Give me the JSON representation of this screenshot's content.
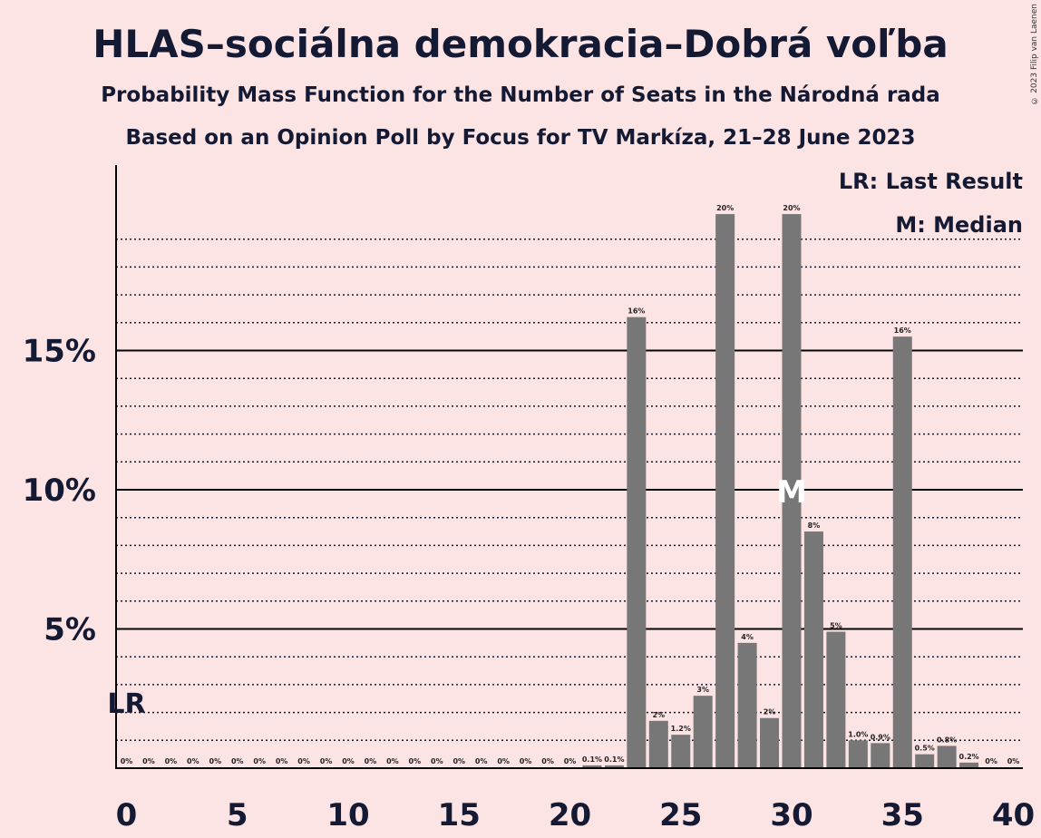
{
  "title": "HLAS–sociálna demokracia–Dobrá voľba",
  "subtitle": "Probability Mass Function for the Number of Seats in the Národná rada",
  "subtitle2": "Based on an Opinion Poll by Focus for TV Markíza, 21–28 June 2023",
  "copyright": "© 2023 Filip van Laenen",
  "legend": {
    "last_result": "LR: Last Result",
    "median": "M: Median"
  },
  "colors": {
    "background": "#fde4e4",
    "bar": "#777777",
    "text": "#141a33"
  },
  "chart_data": {
    "type": "bar",
    "x": [
      0,
      1,
      2,
      3,
      4,
      5,
      6,
      7,
      8,
      9,
      10,
      11,
      12,
      13,
      14,
      15,
      16,
      17,
      18,
      19,
      20,
      21,
      22,
      23,
      24,
      25,
      26,
      27,
      28,
      29,
      30,
      31,
      32,
      33,
      34,
      35,
      36,
      37,
      38,
      39,
      40
    ],
    "values": [
      0,
      0,
      0,
      0,
      0,
      0,
      0,
      0,
      0,
      0,
      0,
      0,
      0,
      0,
      0,
      0,
      0,
      0,
      0,
      0,
      0,
      0.1,
      0.1,
      16.2,
      1.7,
      1.2,
      2.6,
      19.9,
      4.5,
      1.8,
      19.9,
      8.5,
      4.9,
      1.0,
      0.9,
      15.5,
      0.5,
      0.8,
      0.2,
      0,
      0
    ],
    "labels": [
      "0%",
      "0%",
      "0%",
      "0%",
      "0%",
      "0%",
      "0%",
      "0%",
      "0%",
      "0%",
      "0%",
      "0%",
      "0%",
      "0%",
      "0%",
      "0%",
      "0%",
      "0%",
      "0%",
      "0%",
      "0%",
      "0.1%",
      "0.1%",
      "16%",
      "2%",
      "1.2%",
      "3%",
      "20%",
      "4%",
      "2%",
      "20%",
      "8%",
      "5%",
      "1.0%",
      "0.9%",
      "16%",
      "0.5%",
      "0.8%",
      "0.2%",
      "0%",
      "0%"
    ],
    "xticks": [
      0,
      5,
      10,
      15,
      20,
      25,
      30,
      35,
      40
    ],
    "xtick_labels": [
      "0",
      "5",
      "10",
      "15",
      "20",
      "25",
      "30",
      "35",
      "40"
    ],
    "yticks": [
      5,
      10,
      15
    ],
    "ytick_labels": [
      "5%",
      "10%",
      "15%"
    ],
    "ylim": [
      0,
      20.9
    ],
    "xlim": [
      -0.5,
      40.5
    ],
    "grid": true,
    "last_result": {
      "x": 0,
      "label": "LR"
    },
    "median": {
      "x": 30,
      "label": "M"
    },
    "xlabel": "",
    "ylabel": ""
  }
}
